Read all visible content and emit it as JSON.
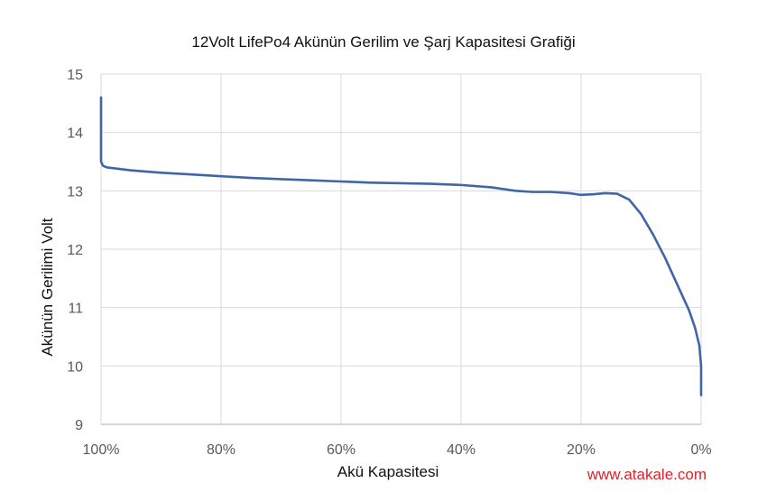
{
  "chart_data": {
    "type": "line",
    "title": "12Volt LifePo4 Akünün Gerilim ve Şarj Kapasitesi Grafiği",
    "xlabel": "Akü Kapasitesi",
    "ylabel": "Akünün Gerilimi Volt",
    "x_reversed": true,
    "xlim": [
      0,
      100
    ],
    "ylim": [
      9,
      15
    ],
    "x_ticks": [
      100,
      80,
      60,
      40,
      20,
      0
    ],
    "x_tick_labels": [
      "100%",
      "80%",
      "60%",
      "40%",
      "20%",
      "0%"
    ],
    "y_ticks": [
      9,
      10,
      11,
      12,
      13,
      14,
      15
    ],
    "y_tick_labels": [
      "9",
      "10",
      "11",
      "12",
      "13",
      "14",
      "15"
    ],
    "grid": true,
    "legend": "none",
    "series": [
      {
        "color": "#4066a8",
        "points": [
          [
            100,
            14.6
          ],
          [
            100,
            13.5
          ],
          [
            99.7,
            13.43
          ],
          [
            99,
            13.4
          ],
          [
            95,
            13.35
          ],
          [
            90,
            13.31
          ],
          [
            85,
            13.28
          ],
          [
            80,
            13.25
          ],
          [
            75,
            13.22
          ],
          [
            70,
            13.2
          ],
          [
            65,
            13.18
          ],
          [
            60,
            13.16
          ],
          [
            55,
            13.14
          ],
          [
            50,
            13.13
          ],
          [
            45,
            13.12
          ],
          [
            40,
            13.1
          ],
          [
            35,
            13.06
          ],
          [
            31,
            13.0
          ],
          [
            28,
            12.98
          ],
          [
            25,
            12.98
          ],
          [
            22,
            12.96
          ],
          [
            20,
            12.93
          ],
          [
            18,
            12.94
          ],
          [
            16,
            12.96
          ],
          [
            14,
            12.95
          ],
          [
            12,
            12.85
          ],
          [
            10,
            12.6
          ],
          [
            8,
            12.25
          ],
          [
            6,
            11.85
          ],
          [
            4,
            11.4
          ],
          [
            2,
            10.95
          ],
          [
            1,
            10.65
          ],
          [
            0.3,
            10.35
          ],
          [
            0,
            10.0
          ],
          [
            0,
            9.5
          ]
        ]
      }
    ]
  },
  "watermark": {
    "text": "www.atakale.com",
    "color": "#d9232a"
  }
}
